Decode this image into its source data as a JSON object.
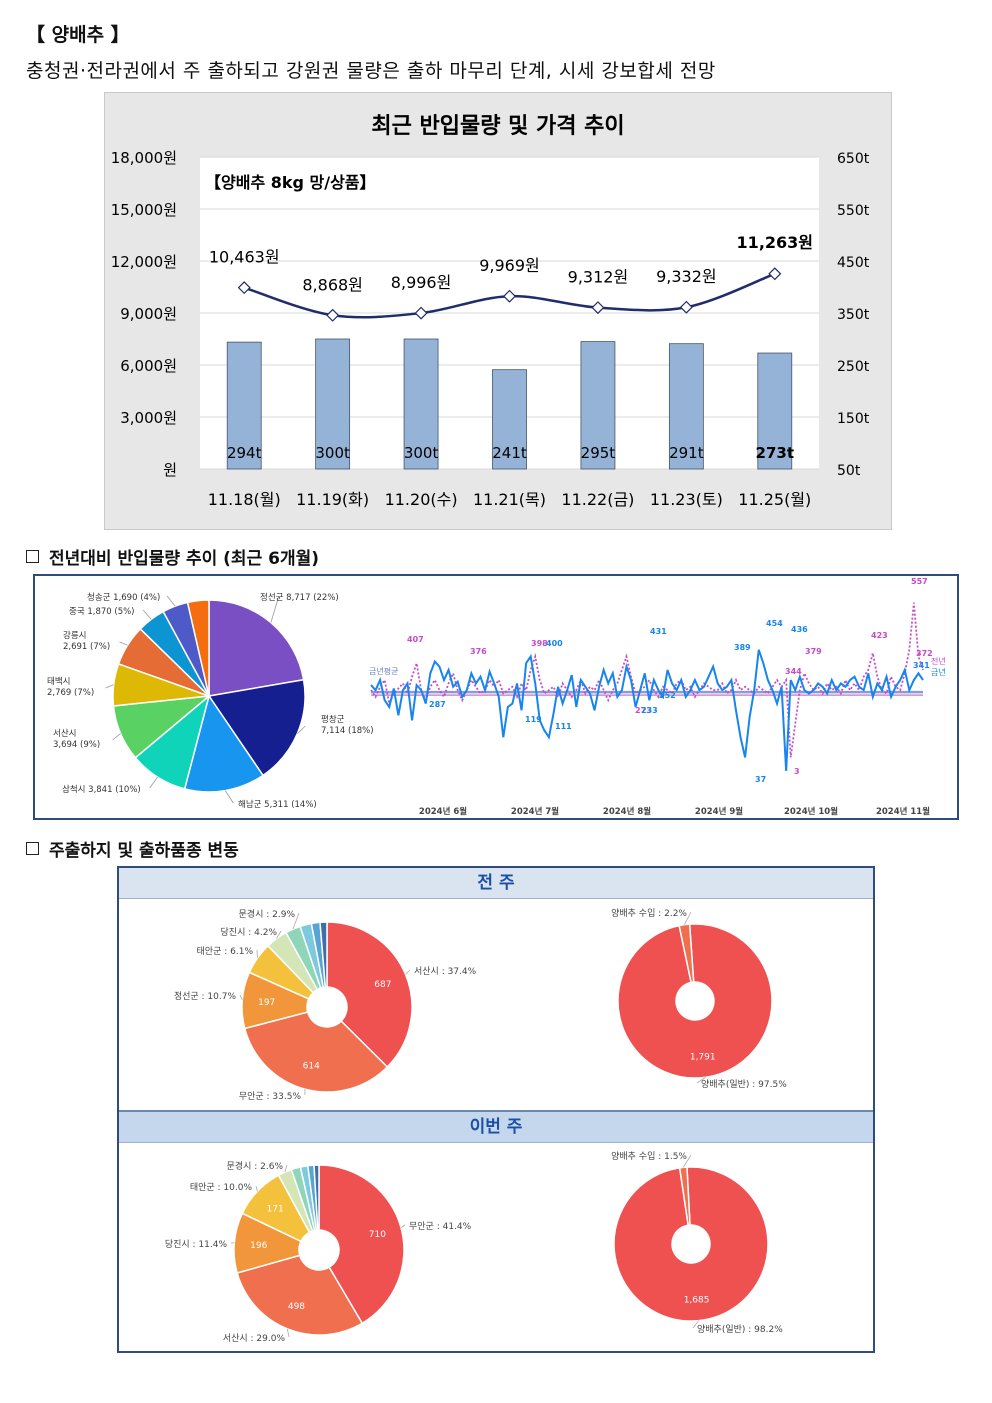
{
  "header": {
    "title": "【 양배추 】",
    "subtitle": "충청권·전라권에서 주 출하되고 강원권 물량은 출하 마무리 단계, 시세 강보합세 전망"
  },
  "sections": {
    "yoy_title": "전년대비 반입물량 추이 (최근 6개월)",
    "origin_title": "주출하지 및 출하품종 변동"
  },
  "chart_data": [
    {
      "type": "bar+line",
      "title": "최근 반입물량 및 가격 추이",
      "inner_label": "【양배추 8kg 망/상품】",
      "categories": [
        "11.18(월)",
        "11.19(화)",
        "11.20(수)",
        "11.21(목)",
        "11.22(금)",
        "11.23(토)",
        "11.25(월)"
      ],
      "y_left": {
        "min": 0,
        "max": 18000,
        "ticks": [
          "원",
          "3,000원",
          "6,000원",
          "9,000원",
          "12,000원",
          "15,000원",
          "18,000원"
        ]
      },
      "y_right": {
        "min": 50,
        "max": 650,
        "ticks": [
          "50t",
          "150t",
          "250t",
          "350t",
          "450t",
          "550t",
          "650t"
        ]
      },
      "series": [
        {
          "kind": "bar",
          "axis": "right",
          "values": [
            294,
            300,
            300,
            241,
            295,
            291,
            273
          ],
          "labels": [
            "294t",
            "300t",
            "300t",
            "241t",
            "295t",
            "291t",
            "273t"
          ],
          "color": "#95b3d7"
        },
        {
          "kind": "line",
          "axis": "left",
          "values": [
            10463,
            8868,
            8996,
            9969,
            9312,
            9332,
            11263
          ],
          "labels": [
            "10,463원",
            "8,868원",
            "8,996원",
            "9,969원",
            "9,312원",
            "9,332원",
            "11,263원"
          ],
          "color": "#1f2d6b"
        }
      ]
    },
    {
      "type": "pie",
      "slices": [
        {
          "label": "정선군 8,717 (22%)",
          "value": 8717,
          "color": "#7b4fc4"
        },
        {
          "label": "평창군",
          "label2": "7,114 (18%)",
          "value": 7114,
          "color": "#151f8f"
        },
        {
          "label": "해남군 5,311 (14%)",
          "value": 5311,
          "color": "#1795ef"
        },
        {
          "label": "삼척시 3,841 (10%)",
          "value": 3841,
          "color": "#10d4b9"
        },
        {
          "label": "서산시",
          "label2": "3,694 (9%)",
          "value": 3694,
          "color": "#5ad163"
        },
        {
          "label": "태백시",
          "label2": "2,769 (7%)",
          "value": 2769,
          "color": "#ddb905"
        },
        {
          "label": "강릉시",
          "label2": "2,691 (7%)",
          "value": 2691,
          "color": "#e56d35"
        },
        {
          "label": "중국 1,870 (5%)",
          "value": 1870,
          "color": "#0d94d2"
        },
        {
          "label": "청송군 1,690 (4%)",
          "value": 1690,
          "color": "#4f5ac9"
        },
        {
          "label": "",
          "value": 1400,
          "color": "#f46d0e"
        }
      ]
    },
    {
      "type": "line",
      "x_ticks": [
        "2024년 6월",
        "2024년 7월",
        "2024년 8월",
        "2024년 9월",
        "2024년 10월",
        "2024년 11월"
      ],
      "series": [
        {
          "name": "금년",
          "color": "#1685ef",
          "style": "solid",
          "values": [
            315,
            300,
            330,
            270,
            250,
            305,
            225,
            300,
            320,
            210,
            315,
            300,
            260,
            350,
            385,
            370,
            330,
            360,
            310,
            325,
            280,
            300,
            350,
            320,
            340,
            300,
            355,
            320,
            280,
            160,
            250,
            260,
            320,
            240,
            380,
            400,
            320,
            210,
            180,
            160,
            230,
            310,
            260,
            300,
            345,
            250,
            330,
            310,
            290,
            240,
            310,
            360,
            320,
            350,
            280,
            300,
            370,
            330,
            250,
            300,
            350,
            270,
            330,
            300,
            280,
            360,
            320,
            300,
            330,
            280,
            300,
            330,
            300,
            310,
            340,
            370,
            320,
            300,
            310,
            330,
            240,
            160,
            100,
            220,
            300,
            420,
            380,
            330,
            300,
            260,
            310,
            60,
            330,
            300,
            340,
            300,
            290,
            300,
            320,
            310,
            290,
            330,
            300,
            320,
            310,
            330,
            340,
            310,
            300,
            350,
            280,
            320,
            300,
            340,
            280,
            310,
            330,
            360,
            300,
            330,
            350,
            330
          ]
        },
        {
          "name": "전년",
          "color": "#c64bc8",
          "style": "dotted",
          "values": [
            300,
            280,
            310,
            330,
            260,
            290,
            305,
            320,
            290,
            340,
            380,
            300,
            270,
            310,
            330,
            300,
            280,
            320,
            350,
            300,
            270,
            300,
            330,
            310,
            290,
            300,
            330,
            310,
            330,
            290,
            300,
            310,
            280,
            320,
            300,
            360,
            400,
            330,
            290,
            300,
            310,
            280,
            320,
            300,
            280,
            300,
            330,
            290,
            310,
            300,
            330,
            300,
            270,
            300,
            320,
            360,
            400,
            340,
            290,
            300,
            310,
            330,
            300,
            280,
            310,
            300,
            290,
            320,
            330,
            300,
            310,
            280,
            300,
            320,
            310,
            300,
            300,
            320,
            290,
            300,
            330,
            300,
            310,
            300,
            290,
            310,
            300,
            290,
            310,
            330,
            310,
            330,
            100,
            200,
            300,
            350,
            320,
            300,
            310,
            290,
            320,
            300,
            310,
            290,
            330,
            300,
            320,
            300,
            340,
            360,
            410,
            340,
            300,
            290,
            340,
            310,
            300,
            350,
            420,
            560,
            400,
            360
          ]
        }
      ],
      "annotations": [
        "557",
        "407",
        "376",
        "398",
        "400",
        "431",
        "389",
        "454",
        "436",
        "379",
        "423",
        "372",
        "341",
        "287",
        "119",
        "111",
        "252",
        "273",
        "233",
        "344",
        "37",
        "3"
      ],
      "legend_left": "금년평균",
      "legend_right": [
        "전년",
        "금년"
      ]
    }
  ],
  "weekly": {
    "prev_label": "전 주",
    "curr_label": "이번 주",
    "prev_origin": [
      {
        "label": "서산시 : 37.4%",
        "value": 687,
        "color": "#ef5050",
        "show": "687"
      },
      {
        "label": "무안군 : 33.5%",
        "value": 614,
        "color": "#ef6f4e",
        "show": "614"
      },
      {
        "label": "정선군 : 10.7%",
        "value": 197,
        "color": "#f1963a",
        "show": "197"
      },
      {
        "label": "태안군 : 6.1%",
        "value": 112,
        "color": "#f4c13d",
        "show": ""
      },
      {
        "label": "당진시 : 4.2%",
        "value": 77,
        "color": "#d4e6b8",
        "show": ""
      },
      {
        "label": "문경시 : 2.9%",
        "value": 53,
        "color": "#8fd5b8",
        "show": ""
      },
      {
        "label": "",
        "value": 40,
        "color": "#7cc9e0",
        "show": ""
      },
      {
        "label": "",
        "value": 30,
        "color": "#58a4d4",
        "show": ""
      },
      {
        "label": "",
        "value": 24,
        "color": "#3d6ea8",
        "show": ""
      }
    ],
    "prev_variety": [
      {
        "label": "양배추(일반) : 97.5%",
        "value": 1791,
        "color": "#ef5050",
        "show": "1,791"
      },
      {
        "label": "양배추 수입 : 2.2%",
        "value": 40,
        "color": "#ef6f4e",
        "show": ""
      }
    ],
    "curr_origin": [
      {
        "label": "무안군 : 41.4%",
        "value": 710,
        "color": "#ef5050",
        "show": "710"
      },
      {
        "label": "서산시 : 29.0%",
        "value": 498,
        "color": "#ef6f4e",
        "show": "498"
      },
      {
        "label": "당진시 : 11.4%",
        "value": 196,
        "color": "#f1963a",
        "show": "196"
      },
      {
        "label": "태안군 : 10.0%",
        "value": 171,
        "color": "#f4c13d",
        "show": "171"
      },
      {
        "label": "문경시 : 2.6%",
        "value": 45,
        "color": "#d4e6b8",
        "show": ""
      },
      {
        "label": "",
        "value": 30,
        "color": "#8fd5b8",
        "show": ""
      },
      {
        "label": "",
        "value": 24,
        "color": "#7cc9e0",
        "show": ""
      },
      {
        "label": "",
        "value": 20,
        "color": "#58a4d4",
        "show": ""
      },
      {
        "label": "",
        "value": 16,
        "color": "#3d6ea8",
        "show": ""
      }
    ],
    "curr_variety": [
      {
        "label": "양배추(일반) : 98.2%",
        "value": 1685,
        "color": "#ef5050",
        "show": "1,685"
      },
      {
        "label": "양배추 수입 : 1.5%",
        "value": 26,
        "color": "#ef6f4e",
        "show": ""
      }
    ]
  }
}
